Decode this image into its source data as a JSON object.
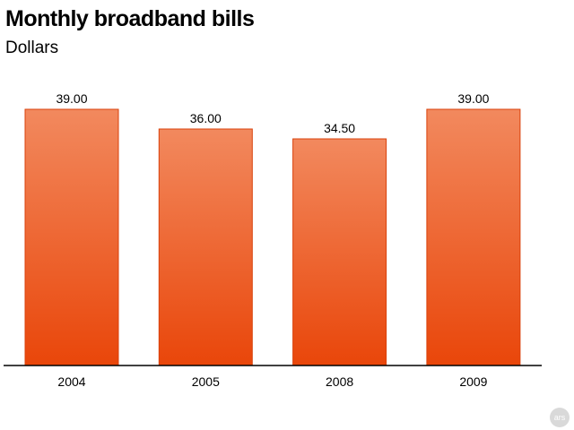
{
  "chart_data": {
    "type": "bar",
    "title": "Monthly broadband bills",
    "subtitle": "Dollars",
    "categories": [
      "2004",
      "2005",
      "2008",
      "2009"
    ],
    "values": [
      39.0,
      36.0,
      34.5,
      39.0
    ],
    "value_labels": [
      "39.00",
      "36.00",
      "34.50",
      "39.00"
    ],
    "xlabel": "",
    "ylabel": "",
    "ylim": [
      0,
      39
    ],
    "grid": false,
    "legend": "none",
    "colors": {
      "bar_top": "#f2895e",
      "bar_bottom": "#e9460a",
      "bar_stroke": "#d9420c",
      "axis": "#000000"
    }
  },
  "branding": {
    "logo_text": "ars"
  }
}
